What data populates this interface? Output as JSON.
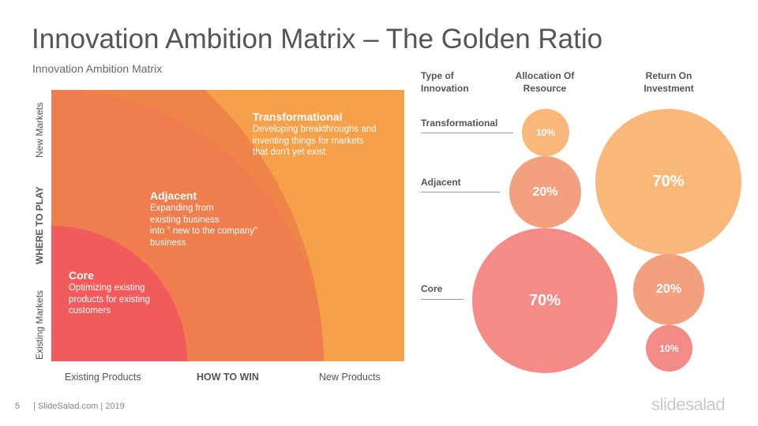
{
  "header": {
    "title": "Innovation Ambition Matrix – The Golden Ratio",
    "subtitle": "Innovation Ambition Matrix"
  },
  "matrix": {
    "y_axis": {
      "top": "New Markets",
      "middle": "WHERE TO PLAY",
      "bottom": "Existing Markets"
    },
    "x_axis": {
      "left": "Existing Products",
      "middle": "HOW TO WIN",
      "right": "New Products"
    },
    "zones": {
      "transformational": {
        "title": "Transformational",
        "line1": "Developing breakthroughs and",
        "line2": "inventing things for markets",
        "line3": "that don't yet exist"
      },
      "adjacent": {
        "title": "Adjacent",
        "line1": "Expanding from",
        "line2": "existing business",
        "line3": "into \" new to the company\"",
        "line4": "business"
      },
      "core": {
        "title": "Core",
        "line1": "Optimizing existing",
        "line2": "products for existing",
        "line3": "customers"
      }
    }
  },
  "ratio": {
    "headers": {
      "type_line1": "Type of",
      "type_line2": "Innovation",
      "alloc_line1": "Allocation  Of",
      "alloc_line2": "Resource",
      "roi_line1": "Return On",
      "roi_line2": "Investment"
    },
    "rows": {
      "transformational": "Transformational",
      "adjacent": "Adjacent",
      "core": "Core"
    },
    "allocation": {
      "transformational": "10%",
      "adjacent": "20%",
      "core": "70%"
    },
    "roi": {
      "transformational": "70%",
      "adjacent": "20%",
      "core": "10%"
    },
    "colors": {
      "light": "#f9b77a",
      "mid": "#f3a07f",
      "pink": "#f58b87"
    }
  },
  "footer": {
    "page": "5",
    "credit": "| SlideSalad.com | 2019",
    "logo": "slidesalad"
  }
}
